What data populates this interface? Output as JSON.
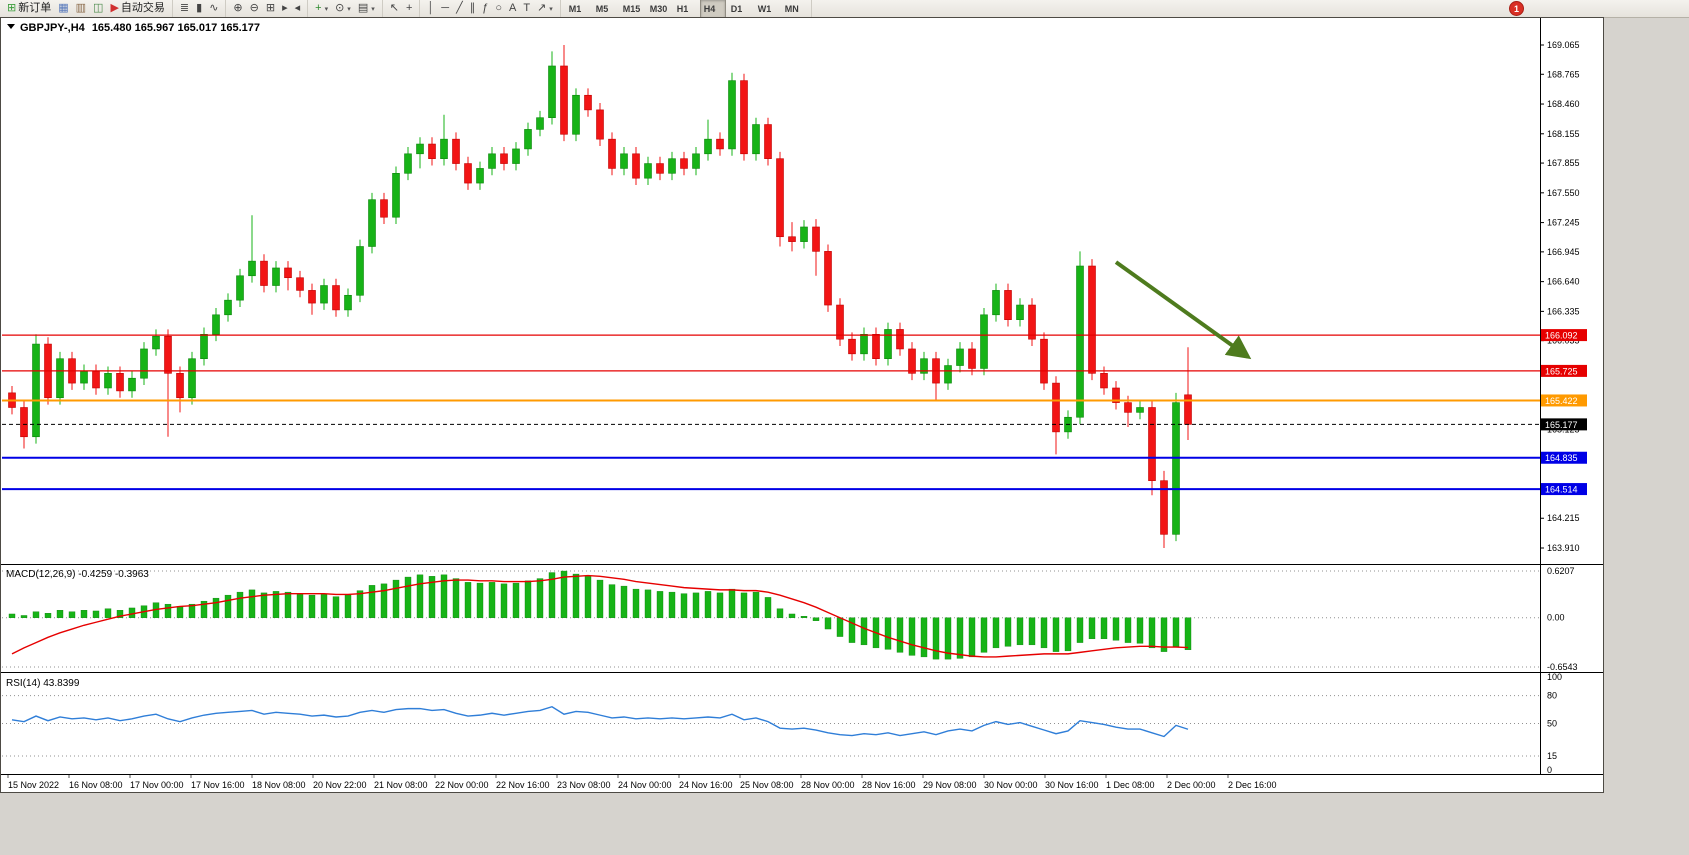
{
  "toolbar": {
    "alert_badge": "1",
    "active_timeframe": "H4",
    "groups": [
      {
        "name": "trade-group",
        "items": [
          {
            "name": "new-order",
            "label": "新订单",
            "glyph": "⊞",
            "glyph_color": "#3c9e3c"
          },
          {
            "name": "charts-grid",
            "glyph": "▦",
            "glyph_color": "#5577bb"
          },
          {
            "name": "profiles",
            "glyph": "▥",
            "glyph_color": "#8a6a4a"
          },
          {
            "name": "data-window",
            "glyph": "◫",
            "glyph_color": "#4a8a4a"
          },
          {
            "name": "auto-trading",
            "label": "自动交易",
            "glyph": "▶",
            "glyph_color": "#d03030"
          }
        ]
      },
      {
        "name": "chart-type-group",
        "items": [
          {
            "name": "bar-chart",
            "glyph": "≣"
          },
          {
            "name": "candlestick-chart",
            "glyph": "▮"
          },
          {
            "name": "line-chart",
            "glyph": "∿"
          }
        ]
      },
      {
        "name": "zoom-group",
        "items": [
          {
            "name": "zoom-in",
            "glyph": "⊕"
          },
          {
            "name": "zoom-out",
            "glyph": "⊖"
          },
          {
            "name": "tile-windows",
            "glyph": "⊞"
          },
          {
            "name": "auto-scroll",
            "glyph": "▸"
          },
          {
            "name": "chart-shift",
            "glyph": "◂"
          }
        ]
      },
      {
        "name": "insert-group",
        "items": [
          {
            "name": "indicators",
            "glyph": "+",
            "glyph_color": "#2e8b2e",
            "dropdown": true
          },
          {
            "name": "periods",
            "glyph": "⊙",
            "dropdown": true
          },
          {
            "name": "templates",
            "glyph": "▤",
            "dropdown": true
          }
        ]
      },
      {
        "name": "cursor-group",
        "items": [
          {
            "name": "cursor",
            "glyph": "↖"
          },
          {
            "name": "crosshair",
            "glyph": "+"
          }
        ]
      },
      {
        "name": "objects-group",
        "items": [
          {
            "name": "vertical-line",
            "glyph": "│"
          },
          {
            "name": "horizontal-line",
            "glyph": "─"
          },
          {
            "name": "trendline",
            "glyph": "╱"
          },
          {
            "name": "equidistant-channel",
            "glyph": "∥"
          },
          {
            "name": "fibonacci",
            "glyph": "ƒ"
          },
          {
            "name": "shapes",
            "glyph": "○"
          },
          {
            "name": "text",
            "glyph": "A"
          },
          {
            "name": "text-label",
            "glyph": "T"
          },
          {
            "name": "arrows",
            "glyph": "↗",
            "dropdown": true
          }
        ]
      },
      {
        "name": "timeframe-group",
        "items": [
          {
            "name": "tf-m1",
            "label": "M1"
          },
          {
            "name": "tf-m5",
            "label": "M5"
          },
          {
            "name": "tf-m15",
            "label": "M15"
          },
          {
            "name": "tf-m30",
            "label": "M30"
          },
          {
            "name": "tf-h1",
            "label": "H1"
          },
          {
            "name": "tf-h4",
            "label": "H4"
          },
          {
            "name": "tf-d1",
            "label": "D1"
          },
          {
            "name": "tf-w1",
            "label": "W1"
          },
          {
            "name": "tf-mn",
            "label": "MN"
          }
        ]
      }
    ]
  },
  "chart": {
    "symbol": "GBPJPY-,H4",
    "ohlc_text": "165.480 165.967 165.017 165.177",
    "price_axis": [
      "169.065",
      "168.765",
      "168.460",
      "168.155",
      "167.855",
      "167.550",
      "167.245",
      "166.945",
      "166.640",
      "166.335",
      "166.035",
      "165.730",
      "165.425",
      "165.125",
      "164.820",
      "164.515",
      "164.215",
      "163.910"
    ],
    "time_axis": [
      "15 Nov 2022",
      "16 Nov 08:00",
      "17 Nov 00:00",
      "17 Nov 16:00",
      "18 Nov 08:00",
      "20 Nov 22:00",
      "21 Nov 08:00",
      "22 Nov 00:00",
      "22 Nov 16:00",
      "23 Nov 08:00",
      "24 Nov 00:00",
      "24 Nov 16:00",
      "25 Nov 08:00",
      "28 Nov 00:00",
      "28 Nov 16:00",
      "29 Nov 08:00",
      "30 Nov 00:00",
      "30 Nov 16:00",
      "1 Dec 08:00",
      "2 Dec 00:00",
      "2 Dec 16:00"
    ],
    "hlines": [
      {
        "label": "166.092",
        "price": 166.092,
        "color": "#e60000",
        "width": 1.2,
        "style": "solid"
      },
      {
        "label": "165.725",
        "price": 165.725,
        "color": "#e60000",
        "width": 1.2,
        "style": "solid"
      },
      {
        "label": "165.422",
        "price": 165.422,
        "color": "#ff9a00",
        "width": 2,
        "style": "solid"
      },
      {
        "label": "165.177",
        "price": 165.177,
        "color": "#000000",
        "width": 1,
        "style": "dot"
      },
      {
        "label": "164.835",
        "price": 164.835,
        "color": "#0000e6",
        "width": 2,
        "style": "solid"
      },
      {
        "label": "164.514",
        "price": 164.514,
        "color": "#0000e6",
        "width": 2,
        "style": "solid"
      }
    ],
    "annotation_arrow": {
      "from_index": 92,
      "from_price": 166.84,
      "to_index": 103,
      "to_price": 165.87,
      "color": "#4e7b1e",
      "width": 4
    },
    "colors": {
      "bull": "#17b317",
      "bear": "#f21515",
      "bull_border": "#0c860c",
      "bear_border": "#c00000",
      "macd_hist": "#17b317",
      "macd_signal": "#e60000",
      "rsi_line": "#2f7ed8",
      "grid_dot": "#909090",
      "frame": "#4d4a44"
    }
  },
  "indicators": {
    "macd": {
      "label": "MACD(12,26,9) -0.4259 -0.3963",
      "axis": [
        "0.6207",
        "0.00",
        "-0.6543"
      ]
    },
    "rsi": {
      "label": "RSI(14) 43.8399",
      "axis": [
        "100",
        "80",
        "50",
        "15",
        "0"
      ]
    }
  },
  "chart_data": {
    "type": "candlestick",
    "title": "GBPJPY- H4",
    "symbol": "GBPJPY-",
    "timeframe": "H4",
    "price_range": [
      163.91,
      169.065
    ],
    "last_ohlc": {
      "open": 165.48,
      "high": 165.967,
      "low": 165.017,
      "close": 165.177
    },
    "hline_levels": [
      166.092,
      165.725,
      165.422,
      165.177,
      164.835,
      164.514
    ],
    "candles": [
      [
        165.5,
        165.57,
        165.28,
        165.35
      ],
      [
        165.35,
        165.42,
        164.93,
        165.05
      ],
      [
        165.05,
        166.1,
        164.98,
        166.0
      ],
      [
        166.0,
        166.07,
        165.38,
        165.45
      ],
      [
        165.45,
        165.92,
        165.38,
        165.85
      ],
      [
        165.85,
        165.92,
        165.53,
        165.6
      ],
      [
        165.6,
        165.79,
        165.53,
        165.72
      ],
      [
        165.72,
        165.79,
        165.48,
        165.55
      ],
      [
        165.55,
        165.77,
        165.48,
        165.7
      ],
      [
        165.7,
        165.77,
        165.45,
        165.52
      ],
      [
        165.52,
        165.72,
        165.45,
        165.65
      ],
      [
        165.65,
        166.02,
        165.58,
        165.95
      ],
      [
        165.95,
        166.15,
        165.88,
        166.08
      ],
      [
        166.08,
        166.15,
        165.05,
        165.7
      ],
      [
        165.7,
        165.77,
        165.3,
        165.45
      ],
      [
        165.45,
        165.92,
        165.38,
        165.85
      ],
      [
        165.85,
        166.17,
        165.78,
        166.1
      ],
      [
        166.1,
        166.37,
        166.03,
        166.3
      ],
      [
        166.3,
        166.52,
        166.23,
        166.45
      ],
      [
        166.45,
        166.77,
        166.38,
        166.7
      ],
      [
        166.7,
        167.32,
        166.63,
        166.85
      ],
      [
        166.85,
        166.92,
        166.53,
        166.6
      ],
      [
        166.6,
        166.85,
        166.53,
        166.78
      ],
      [
        166.78,
        166.85,
        166.55,
        166.68
      ],
      [
        166.68,
        166.75,
        166.48,
        166.55
      ],
      [
        166.55,
        166.62,
        166.3,
        166.42
      ],
      [
        166.42,
        166.67,
        166.35,
        166.6
      ],
      [
        166.6,
        166.67,
        166.28,
        166.35
      ],
      [
        166.35,
        166.57,
        166.28,
        166.5
      ],
      [
        166.5,
        167.07,
        166.43,
        167.0
      ],
      [
        167.0,
        167.55,
        166.93,
        167.48
      ],
      [
        167.48,
        167.55,
        167.23,
        167.3
      ],
      [
        167.3,
        167.82,
        167.23,
        167.75
      ],
      [
        167.75,
        168.02,
        167.68,
        167.95
      ],
      [
        167.95,
        168.12,
        167.8,
        168.05
      ],
      [
        168.05,
        168.12,
        167.83,
        167.9
      ],
      [
        167.9,
        168.35,
        167.83,
        168.1
      ],
      [
        168.1,
        168.17,
        167.78,
        167.85
      ],
      [
        167.85,
        167.92,
        167.58,
        167.65
      ],
      [
        167.65,
        167.87,
        167.58,
        167.8
      ],
      [
        167.8,
        168.02,
        167.73,
        167.95
      ],
      [
        167.95,
        168.02,
        167.78,
        167.85
      ],
      [
        167.85,
        168.07,
        167.78,
        168.0
      ],
      [
        168.0,
        168.27,
        167.93,
        168.2
      ],
      [
        168.2,
        168.39,
        168.13,
        168.32
      ],
      [
        168.32,
        169.0,
        168.25,
        168.85
      ],
      [
        168.85,
        169.065,
        168.08,
        168.15
      ],
      [
        168.15,
        168.62,
        168.08,
        168.55
      ],
      [
        168.55,
        168.62,
        168.33,
        168.4
      ],
      [
        168.4,
        168.47,
        168.03,
        168.1
      ],
      [
        168.1,
        168.17,
        167.73,
        167.8
      ],
      [
        167.8,
        168.02,
        167.73,
        167.95
      ],
      [
        167.95,
        168.02,
        167.63,
        167.7
      ],
      [
        167.7,
        167.92,
        167.63,
        167.85
      ],
      [
        167.85,
        167.92,
        167.68,
        167.75
      ],
      [
        167.75,
        167.97,
        167.68,
        167.9
      ],
      [
        167.9,
        167.97,
        167.73,
        167.8
      ],
      [
        167.8,
        168.02,
        167.73,
        167.95
      ],
      [
        167.95,
        168.3,
        167.88,
        168.1
      ],
      [
        168.1,
        168.17,
        167.93,
        168.0
      ],
      [
        168.0,
        168.78,
        167.93,
        168.7
      ],
      [
        168.7,
        168.77,
        167.88,
        167.95
      ],
      [
        167.95,
        168.32,
        167.88,
        168.25
      ],
      [
        168.25,
        168.32,
        167.83,
        167.9
      ],
      [
        167.9,
        167.97,
        167.0,
        167.1
      ],
      [
        167.1,
        167.25,
        166.95,
        167.05
      ],
      [
        167.05,
        167.27,
        166.98,
        167.2
      ],
      [
        167.2,
        167.28,
        166.7,
        166.95
      ],
      [
        166.95,
        167.02,
        166.33,
        166.4
      ],
      [
        166.4,
        166.47,
        165.98,
        166.05
      ],
      [
        166.05,
        166.12,
        165.83,
        165.9
      ],
      [
        165.9,
        166.17,
        165.83,
        166.1
      ],
      [
        166.1,
        166.17,
        165.78,
        165.85
      ],
      [
        165.85,
        166.22,
        165.78,
        166.15
      ],
      [
        166.15,
        166.22,
        165.88,
        165.95
      ],
      [
        165.95,
        166.02,
        165.63,
        165.7
      ],
      [
        165.7,
        165.92,
        165.63,
        165.85
      ],
      [
        165.85,
        165.92,
        165.42,
        165.6
      ],
      [
        165.6,
        165.85,
        165.53,
        165.78
      ],
      [
        165.78,
        166.02,
        165.71,
        165.95
      ],
      [
        165.95,
        166.02,
        165.68,
        165.75
      ],
      [
        165.75,
        166.37,
        165.68,
        166.3
      ],
      [
        166.3,
        166.62,
        166.23,
        166.55
      ],
      [
        166.55,
        166.62,
        166.18,
        166.25
      ],
      [
        166.25,
        166.47,
        166.18,
        166.4
      ],
      [
        166.4,
        166.47,
        165.98,
        166.05
      ],
      [
        166.05,
        166.12,
        165.53,
        165.6
      ],
      [
        165.6,
        165.67,
        164.87,
        165.1
      ],
      [
        165.1,
        165.32,
        165.03,
        165.25
      ],
      [
        165.25,
        166.95,
        165.18,
        166.8
      ],
      [
        166.8,
        166.87,
        165.63,
        165.7
      ],
      [
        165.7,
        165.77,
        165.48,
        165.55
      ],
      [
        165.55,
        165.62,
        165.33,
        165.4
      ],
      [
        165.4,
        165.47,
        165.15,
        165.3
      ],
      [
        165.3,
        165.42,
        165.23,
        165.35
      ],
      [
        165.35,
        165.42,
        164.45,
        164.6
      ],
      [
        164.6,
        164.7,
        163.91,
        164.05
      ],
      [
        164.05,
        165.5,
        163.98,
        165.4
      ],
      [
        165.48,
        165.967,
        165.017,
        165.177
      ]
    ],
    "indicators": {
      "macd": {
        "params": "12,26,9",
        "last_hist": -0.4259,
        "last_signal": -0.3963,
        "scale_top": 0.6207,
        "scale_bottom": -0.6543,
        "histogram": [
          0.05,
          0.03,
          0.08,
          0.06,
          0.1,
          0.08,
          0.1,
          0.09,
          0.12,
          0.1,
          0.13,
          0.16,
          0.2,
          0.18,
          0.15,
          0.18,
          0.22,
          0.26,
          0.3,
          0.34,
          0.37,
          0.33,
          0.35,
          0.34,
          0.32,
          0.3,
          0.31,
          0.28,
          0.3,
          0.36,
          0.43,
          0.45,
          0.5,
          0.54,
          0.57,
          0.55,
          0.57,
          0.52,
          0.47,
          0.46,
          0.47,
          0.45,
          0.46,
          0.49,
          0.52,
          0.6,
          0.62,
          0.58,
          0.55,
          0.5,
          0.44,
          0.42,
          0.38,
          0.37,
          0.35,
          0.34,
          0.32,
          0.33,
          0.35,
          0.33,
          0.38,
          0.33,
          0.34,
          0.27,
          0.12,
          0.05,
          0.02,
          -0.04,
          -0.15,
          -0.25,
          -0.33,
          -0.36,
          -0.4,
          -0.42,
          -0.46,
          -0.5,
          -0.52,
          -0.55,
          -0.55,
          -0.54,
          -0.52,
          -0.46,
          -0.4,
          -0.38,
          -0.36,
          -0.36,
          -0.4,
          -0.45,
          -0.44,
          -0.33,
          -0.28,
          -0.28,
          -0.3,
          -0.33,
          -0.34,
          -0.4,
          -0.45,
          -0.38,
          -0.4259
        ],
        "signal": [
          -0.48,
          -0.4,
          -0.33,
          -0.26,
          -0.2,
          -0.15,
          -0.1,
          -0.06,
          -0.02,
          0.02,
          0.05,
          0.08,
          0.11,
          0.13,
          0.15,
          0.16,
          0.18,
          0.2,
          0.23,
          0.26,
          0.28,
          0.3,
          0.31,
          0.32,
          0.32,
          0.32,
          0.32,
          0.31,
          0.31,
          0.32,
          0.34,
          0.36,
          0.39,
          0.42,
          0.45,
          0.47,
          0.49,
          0.5,
          0.5,
          0.49,
          0.49,
          0.48,
          0.48,
          0.48,
          0.49,
          0.51,
          0.54,
          0.55,
          0.56,
          0.55,
          0.53,
          0.51,
          0.48,
          0.46,
          0.44,
          0.42,
          0.4,
          0.39,
          0.38,
          0.37,
          0.37,
          0.36,
          0.36,
          0.34,
          0.3,
          0.25,
          0.2,
          0.14,
          0.07,
          0.0,
          -0.07,
          -0.14,
          -0.2,
          -0.26,
          -0.31,
          -0.36,
          -0.4,
          -0.44,
          -0.47,
          -0.49,
          -0.51,
          -0.52,
          -0.52,
          -0.51,
          -0.5,
          -0.49,
          -0.48,
          -0.48,
          -0.48,
          -0.46,
          -0.44,
          -0.42,
          -0.4,
          -0.39,
          -0.38,
          -0.38,
          -0.39,
          -0.39,
          -0.3963
        ]
      },
      "rsi": {
        "period": 14,
        "last": 43.8399,
        "levels": [
          80,
          50,
          15
        ],
        "values": [
          54,
          52,
          58,
          53,
          57,
          55,
          56,
          54,
          56,
          53,
          55,
          58,
          60,
          55,
          52,
          56,
          59,
          61,
          62,
          63,
          64,
          60,
          62,
          61,
          60,
          58,
          59,
          57,
          58,
          62,
          64,
          62,
          65,
          66,
          66,
          64,
          65,
          61,
          58,
          59,
          61,
          59,
          61,
          63,
          64,
          68,
          60,
          63,
          62,
          59,
          56,
          57,
          55,
          56,
          55,
          56,
          55,
          56,
          57,
          56,
          60,
          54,
          56,
          52,
          45,
          44,
          45,
          43,
          40,
          38,
          37,
          39,
          38,
          40,
          37,
          39,
          41,
          38,
          42,
          44,
          42,
          48,
          52,
          49,
          51,
          47,
          43,
          39,
          42,
          53,
          51,
          49,
          46,
          44,
          44,
          40,
          36,
          48,
          43.84
        ]
      }
    }
  }
}
